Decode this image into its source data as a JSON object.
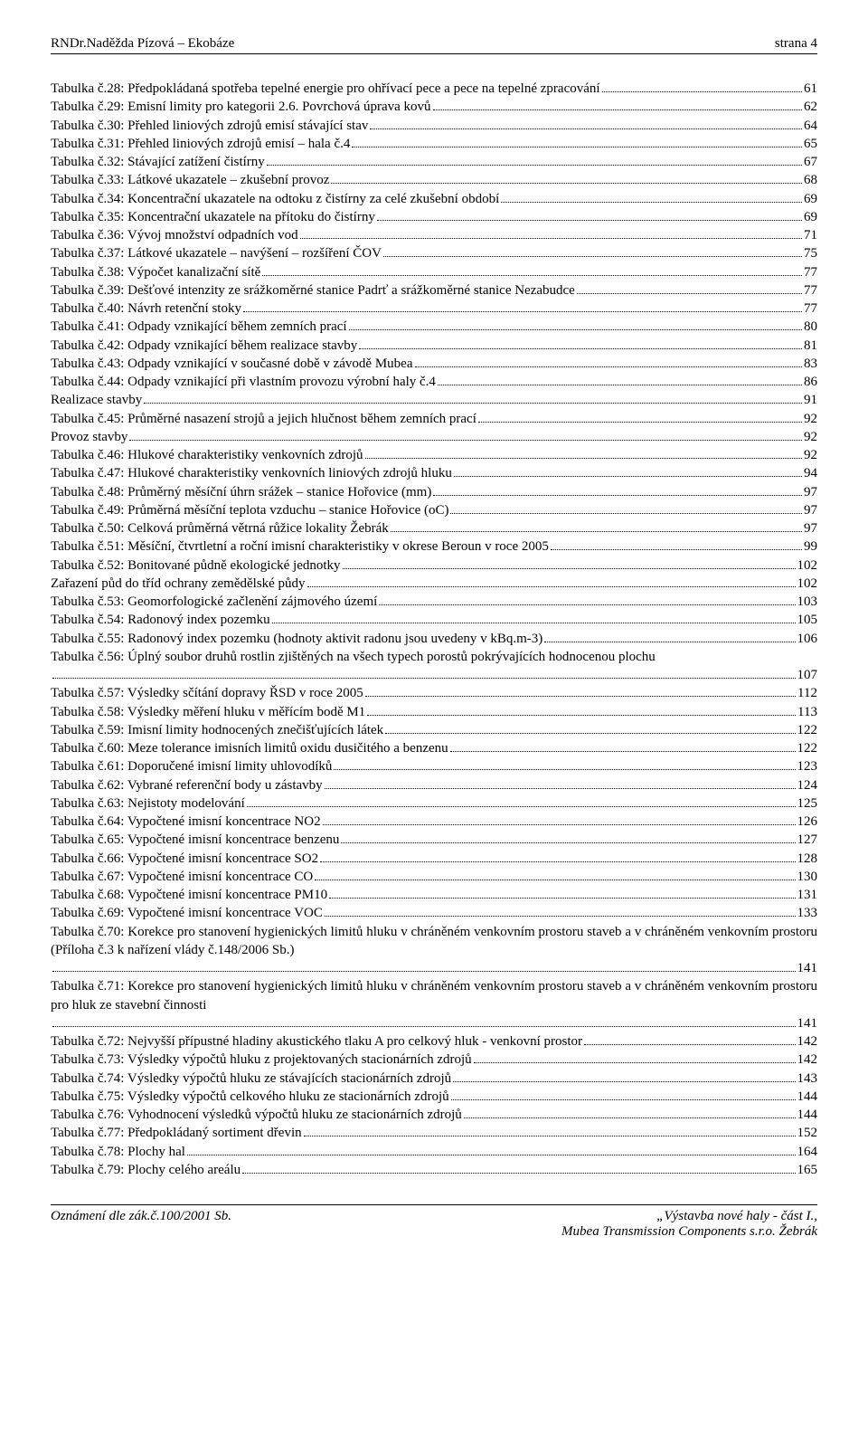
{
  "header": {
    "left": "RNDr.Naděžda Pízová – Ekobáze",
    "right": "strana 4"
  },
  "toc": [
    {
      "label": "Tabulka č.28:  Předpokládaná spotřeba tepelné energie pro ohřívací pece a pece na tepelné zpracování",
      "page": "61"
    },
    {
      "label": "Tabulka č.29:  Emisní limity pro kategorii 2.6. Povrchová úprava kovů",
      "page": "62"
    },
    {
      "label": "Tabulka č.30:  Přehled liniových zdrojů emisí stávající stav",
      "page": "64"
    },
    {
      "label": "Tabulka č.31:  Přehled liniových zdrojů emisí – hala č.4",
      "page": "65"
    },
    {
      "label": "Tabulka č.32:  Stávající zatížení čistírny",
      "page": "67"
    },
    {
      "label": "Tabulka č.33:  Látkové ukazatele – zkušební provoz",
      "page": "68"
    },
    {
      "label": "Tabulka č.34:  Koncentrační ukazatele na odtoku z čistírny za celé zkušební období",
      "page": "69"
    },
    {
      "label": "Tabulka č.35:  Koncentrační ukazatele na přítoku do čistírny",
      "page": "69"
    },
    {
      "label": "Tabulka č.36:  Vývoj množství odpadních vod",
      "page": "71"
    },
    {
      "label": "Tabulka č.37:  Látkové ukazatele – navýšení – rozšíření ČOV",
      "page": "75"
    },
    {
      "label": "Tabulka č.38:  Výpočet kanalizační sítě",
      "page": "77"
    },
    {
      "label": "Tabulka č.39:  Dešťové intenzity ze srážkoměrné stanice Padrť a srážkoměrné stanice Nezabudce",
      "page": "77"
    },
    {
      "label": "Tabulka č.40:  Návrh retenční stoky",
      "page": "77"
    },
    {
      "label": "Tabulka č.41:  Odpady vznikající během zemních prací",
      "page": "80"
    },
    {
      "label": "Tabulka č.42:  Odpady vznikající během realizace stavby",
      "page": "81"
    },
    {
      "label": "Tabulka č.43:  Odpady vznikající v současné době v závodě Mubea",
      "page": "83"
    },
    {
      "label": "Tabulka č.44:  Odpady vznikající při vlastním provozu výrobní haly č.4",
      "page": "86"
    },
    {
      "label": "Realizace stavby",
      "page": "91"
    },
    {
      "label": "Tabulka č.45:  Průměrné nasazení strojů a jejich hlučnost během zemních prací",
      "page": "92"
    },
    {
      "label": "Provoz stavby",
      "page": "92"
    },
    {
      "label": "Tabulka č.46:  Hlukové charakteristiky venkovních zdrojů",
      "page": "92"
    },
    {
      "label": "Tabulka č.47:  Hlukové charakteristiky venkovních liniových zdrojů hluku",
      "page": "94"
    },
    {
      "label": "Tabulka č.48:  Průměrný měsíční úhrn srážek – stanice Hořovice (mm)",
      "page": "97"
    },
    {
      "label": "Tabulka č.49:  Průměrná měsíční teplota vzduchu – stanice Hořovice (oC)",
      "page": "97"
    },
    {
      "label": "Tabulka č.50:  Celková průměrná větrná růžice lokality Žebrák",
      "page": "97"
    },
    {
      "label": "Tabulka č.51:  Měsíční, čtvrtletní a roční imisní charakteristiky v okrese Beroun v roce 2005",
      "page": "99"
    },
    {
      "label": "Tabulka č.52:  Bonitované půdně ekologické jednotky",
      "page": "102"
    },
    {
      "label": "Zařazení půd do tříd ochrany zemědělské půdy",
      "page": "102"
    },
    {
      "label": "Tabulka č.53:  Geomorfologické začlenění zájmového území",
      "page": "103"
    },
    {
      "label": "Tabulka č.54:  Radonový index pozemku",
      "page": "105"
    },
    {
      "label": "Tabulka č.55:  Radonový index pozemku (hodnoty aktivit radonu jsou uvedeny v kBq.m-3)",
      "page": "106"
    },
    {
      "label": "Tabulka č.56:  Úplný soubor druhů rostlin zjištěných na všech typech porostů pokrývajících hodnocenou plochu",
      "page": "107",
      "wrap": true
    },
    {
      "label": "Tabulka č.57:  Výsledky sčítání dopravy ŘSD v roce 2005",
      "page": "112"
    },
    {
      "label": "Tabulka č.58:  Výsledky měření hluku v měřícím bodě M1",
      "page": "113"
    },
    {
      "label": "Tabulka č.59:  Imisní limity hodnocených znečišťujících látek",
      "page": "122"
    },
    {
      "label": "Tabulka č.60:  Meze tolerance imisních limitů oxidu dusičitého a benzenu",
      "page": "122"
    },
    {
      "label": "Tabulka č.61:  Doporučené imisní limity uhlovodíků",
      "page": "123"
    },
    {
      "label": "Tabulka č.62:  Vybrané referenční body u zástavby",
      "page": "124"
    },
    {
      "label": "Tabulka č.63:  Nejistoty modelování",
      "page": "125"
    },
    {
      "label": "Tabulka č.64:  Vypočtené imisní koncentrace NO2",
      "page": "126"
    },
    {
      "label": "Tabulka č.65:  Vypočtené imisní koncentrace benzenu",
      "page": "127"
    },
    {
      "label": "Tabulka č.66:  Vypočtené imisní koncentrace SO2",
      "page": "128"
    },
    {
      "label": "Tabulka č.67:  Vypočtené imisní koncentrace CO",
      "page": "130"
    },
    {
      "label": "Tabulka č.68:  Vypočtené imisní koncentrace PM10",
      "page": "131"
    },
    {
      "label": "Tabulka č.69:  Vypočtené imisní koncentrace VOC",
      "page": "133"
    },
    {
      "label": "Tabulka č.70:  Korekce pro stanovení hygienických limitů hluku v chráněném venkovním prostoru staveb a v chráněném venkovním prostoru (Příloha č.3 k nařízení vlády č.148/2006 Sb.)",
      "page": "141",
      "wrap": true
    },
    {
      "label": "Tabulka č.71:  Korekce pro stanovení hygienických limitů hluku v chráněném venkovním prostoru staveb a v chráněném venkovním prostoru pro hluk ze stavební činnosti",
      "page": "141",
      "wrap": true
    },
    {
      "label": "Tabulka č.72:  Nejvyšší přípustné hladiny akustického tlaku A pro celkový hluk - venkovní prostor",
      "page": "142"
    },
    {
      "label": "Tabulka č.73:  Výsledky výpočtů hluku z projektovaných stacionárních zdrojů",
      "page": "142"
    },
    {
      "label": "Tabulka č.74:  Výsledky výpočtů hluku ze stávajících stacionárních zdrojů",
      "page": "143"
    },
    {
      "label": "Tabulka č.75:  Výsledky výpočtů celkového hluku ze stacionárních zdrojů",
      "page": "144"
    },
    {
      "label": "Tabulka č.76:  Vyhodnocení výsledků výpočtů hluku ze stacionárních zdrojů",
      "page": "144"
    },
    {
      "label": "Tabulka č.77:  Předpokládaný sortiment dřevin",
      "page": "152"
    },
    {
      "label": "Tabulka č.78:  Plochy hal",
      "page": "164"
    },
    {
      "label": "Tabulka č.79:  Plochy celého areálu",
      "page": "165"
    }
  ],
  "footer": {
    "left": "Oznámení dle zák.č.100/2001 Sb.",
    "rightTop": "„Výstavba nové haly - část I.,",
    "rightBottom": "Mubea Transmission Components s.r.o. Žebrák"
  }
}
